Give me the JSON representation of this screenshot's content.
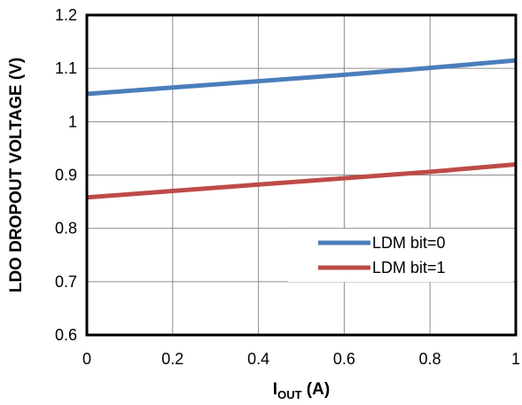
{
  "chart_data": {
    "type": "line",
    "xlabel": {
      "main": "I",
      "sub": "OUT",
      "suffix": " (A)"
    },
    "ylabel": "LDO DROPOUT VOLTAGE (V)",
    "xlim": [
      0,
      1
    ],
    "ylim": [
      0.6,
      1.2
    ],
    "x_ticks": [
      "0",
      "0.2",
      "0.4",
      "0.6",
      "0.8",
      "1"
    ],
    "y_ticks": [
      "0.6",
      "0.7",
      "0.8",
      "0.9",
      "1",
      "1.1",
      "1.2"
    ],
    "grid": true,
    "legend_position": "bottom-right",
    "series": [
      {
        "name": "LDM bit=0",
        "color": "#4a7ebb",
        "x": [
          0,
          0.2,
          0.4,
          0.6,
          0.8,
          1
        ],
        "y": [
          1.052,
          1.064,
          1.076,
          1.088,
          1.101,
          1.115
        ]
      },
      {
        "name": "LDM bit=1",
        "color": "#be4b48",
        "x": [
          0,
          0.2,
          0.4,
          0.6,
          0.8,
          1
        ],
        "y": [
          0.858,
          0.87,
          0.882,
          0.894,
          0.906,
          0.92
        ]
      }
    ]
  }
}
